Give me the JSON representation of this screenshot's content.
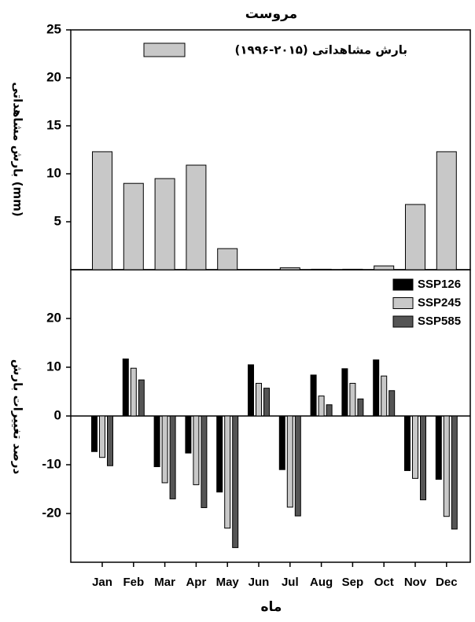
{
  "chart_data": [
    {
      "type": "bar",
      "title": "مروست",
      "ylabel": "بارش مشاهداتی (mm)",
      "series": [
        {
          "name": "بارش مشاهداتی (۲۰۱۵-۱۹۹۶)",
          "color": "#c8c8c8",
          "values": [
            12.3,
            9.0,
            9.5,
            10.9,
            2.2,
            0,
            0.2,
            0.05,
            0.05,
            0.4,
            6.8,
            12.3
          ]
        }
      ],
      "ylim": [
        0,
        25
      ],
      "yticks": [
        5,
        10,
        15,
        20,
        25
      ]
    },
    {
      "type": "bar",
      "ylabel": "درصد تغییرات بارش",
      "xlabel": "ماه",
      "categories": [
        "Jan",
        "Feb",
        "Mar",
        "Apr",
        "May",
        "Jun",
        "Jul",
        "Aug",
        "Sep",
        "Oct",
        "Nov",
        "Dec"
      ],
      "series": [
        {
          "name": "SSP126",
          "color": "#000000",
          "values": [
            -7.3,
            11.7,
            -10.4,
            -7.6,
            -15.6,
            10.5,
            -11.0,
            8.4,
            9.7,
            11.5,
            -11.2,
            -13.0
          ]
        },
        {
          "name": "SSP245",
          "color": "#c8c8c8",
          "values": [
            -8.5,
            9.8,
            -13.7,
            -14.1,
            -23.0,
            6.7,
            -18.7,
            4.1,
            6.7,
            8.2,
            -12.8,
            -20.6
          ]
        },
        {
          "name": "SSP585",
          "color": "#555555",
          "values": [
            -10.2,
            7.4,
            -17.0,
            -18.8,
            -27.0,
            5.7,
            -20.5,
            2.3,
            3.5,
            5.2,
            -17.2,
            -23.2
          ]
        }
      ],
      "ylim": [
        -30,
        30
      ],
      "yticks": [
        -20,
        -10,
        0,
        10,
        20
      ]
    }
  ]
}
